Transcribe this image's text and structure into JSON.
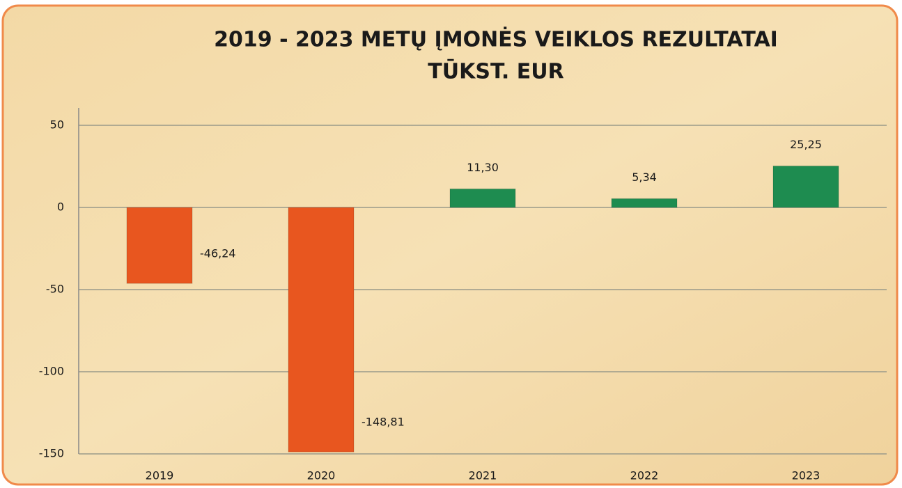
{
  "chart_data": {
    "type": "bar",
    "title": [
      "2019 - 2023 METŲ ĮMONĖS VEIKLOS REZULTATAI",
      "TŪKST. EUR"
    ],
    "categories": [
      "2019",
      "2020",
      "2021",
      "2022",
      "2023"
    ],
    "values": [
      -46.24,
      -148.81,
      11.3,
      5.34,
      25.25
    ],
    "value_labels": [
      "-46,24",
      "-148,81",
      "11,30",
      "5,34",
      "25,25"
    ],
    "colors": [
      "#e8561f",
      "#e8561f",
      "#1e8c50",
      "#1e8c50",
      "#1e8c50"
    ],
    "ylim": [
      -150,
      50
    ],
    "yticks": [
      50,
      0,
      -50,
      -100,
      -150
    ],
    "grid": true
  }
}
